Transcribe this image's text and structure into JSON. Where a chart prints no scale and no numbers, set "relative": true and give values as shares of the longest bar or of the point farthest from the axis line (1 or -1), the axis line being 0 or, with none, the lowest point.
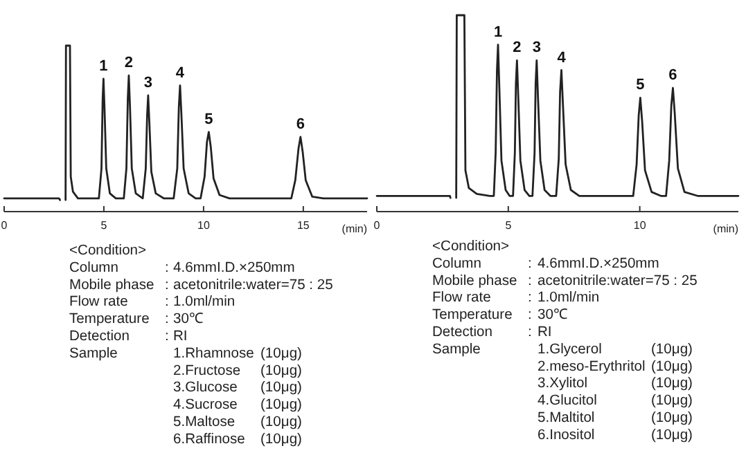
{
  "chart_data": [
    {
      "type": "line",
      "relative": true,
      "xlabel": "(min)",
      "xlim": [
        0,
        18.2
      ],
      "xticks": [
        0,
        5,
        10,
        15
      ],
      "marker": "none",
      "line_style": "solid",
      "series": [
        {
          "color": "#222222",
          "x": [
            0,
            2.75,
            2.8,
            2.95,
            3.08,
            3.1,
            3.3,
            3.34,
            3.45,
            3.7,
            4.6,
            4.75,
            4.88,
            4.94,
            4.98,
            5.03,
            5.12,
            5.3,
            5.6,
            6.0,
            6.13,
            6.2,
            6.25,
            6.31,
            6.4,
            6.6,
            6.95,
            7.1,
            7.17,
            7.22,
            7.28,
            7.38,
            7.6,
            8.0,
            8.5,
            8.68,
            8.76,
            8.82,
            8.89,
            9.0,
            9.25,
            9.6,
            9.85,
            10.05,
            10.17,
            10.26,
            10.36,
            10.5,
            10.8,
            11.3,
            14.4,
            14.6,
            14.76,
            14.86,
            14.97,
            15.12,
            15.45,
            16,
            18.2
          ],
          "values": [
            0.08,
            0.08,
            0.07,
            null,
            0.07,
            1,
            1,
            0.21,
            0.12,
            0.08,
            0.08,
            0.08,
            0.26,
            0.68,
            0.8,
            0.63,
            0.26,
            0.11,
            0.08,
            0.08,
            0.26,
            0.68,
            0.82,
            0.63,
            0.26,
            0.11,
            0.08,
            0.26,
            0.58,
            0.7,
            0.54,
            0.24,
            0.11,
            0.08,
            0.08,
            0.26,
            0.63,
            0.76,
            0.58,
            0.26,
            0.11,
            0.08,
            0.08,
            0.21,
            0.42,
            0.48,
            0.39,
            0.2,
            0.1,
            0.08,
            0.08,
            0.19,
            0.38,
            0.45,
            0.36,
            0.19,
            0.09,
            0.08,
            0.08
          ]
        }
      ],
      "annotations": [
        {
          "text": "1",
          "x": 4.98,
          "y": 0.8
        },
        {
          "text": "2",
          "x": 6.25,
          "y": 0.82
        },
        {
          "text": "3",
          "x": 7.22,
          "y": 0.7
        },
        {
          "text": "4",
          "x": 8.82,
          "y": 0.76
        },
        {
          "text": "5",
          "x": 10.26,
          "y": 0.48
        },
        {
          "text": "6",
          "x": 14.86,
          "y": 0.45
        },
        "<Condition>",
        "Column\t:\t4.6mmI.D.×250mm",
        "Mobile phase\t:\tacetonitrile:water=75 : 25",
        "Flow rate\t:\t1.0ml/min",
        "Temperature\t:\t30℃",
        "Detection\t:\tRI",
        "Sample\t\t1.Rhamnose\t(10μg)",
        "\t\t2.Fructose\t(10μg)",
        "\t\t3.Glucose\t(10μg)",
        "\t\t4.Sucrose\t(10μg)",
        "\t\t5.Maltose\t(10μg)",
        "\t\t6.Raffinose\t(10μg)"
      ]
    },
    {
      "type": "line",
      "relative": true,
      "xlabel": "(min)",
      "xlim": [
        0,
        13.75
      ],
      "xticks": [
        0,
        5,
        10
      ],
      "marker": "none",
      "line_style": "solid",
      "series": [
        {
          "color": "#222222",
          "x": [
            0,
            2.78,
            2.8,
            2.95,
            3.02,
            3.04,
            3.33,
            3.37,
            3.5,
            3.8,
            4.3,
            4.45,
            4.52,
            4.57,
            4.61,
            4.66,
            4.74,
            4.9,
            5.05,
            5.18,
            5.25,
            5.29,
            5.33,
            5.38,
            5.46,
            5.62,
            5.8,
            5.92,
            6.0,
            6.04,
            6.08,
            6.13,
            6.22,
            6.38,
            6.6,
            6.82,
            6.92,
            6.97,
            7.02,
            7.08,
            7.18,
            7.38,
            7.7,
            9.75,
            9.88,
            9.96,
            10.02,
            10.09,
            10.2,
            10.45,
            10.8,
            11.0,
            11.12,
            11.2,
            11.26,
            11.33,
            11.45,
            11.7,
            12.2,
            13.75
          ],
          "values": [
            0.08,
            0.08,
            0.07,
            null,
            0.07,
            1,
            1,
            0.21,
            0.12,
            0.09,
            0.08,
            0.08,
            0.3,
            0.72,
            0.85,
            0.63,
            0.26,
            0.11,
            0.08,
            0.08,
            0.3,
            0.65,
            0.77,
            0.58,
            0.26,
            0.11,
            0.08,
            0.08,
            0.3,
            0.65,
            0.77,
            0.58,
            0.26,
            0.11,
            0.08,
            0.08,
            0.27,
            0.61,
            0.72,
            0.54,
            0.24,
            0.11,
            0.08,
            0.08,
            0.24,
            0.49,
            0.58,
            0.46,
            0.21,
            0.1,
            0.08,
            0.08,
            0.26,
            0.54,
            0.63,
            0.5,
            0.22,
            0.1,
            0.08,
            0.08
          ]
        }
      ],
      "annotations": [
        {
          "text": "1",
          "x": 4.61,
          "y": 0.85
        },
        {
          "text": "2",
          "x": 5.33,
          "y": 0.77
        },
        {
          "text": "3",
          "x": 6.08,
          "y": 0.77
        },
        {
          "text": "4",
          "x": 7.02,
          "y": 0.72
        },
        {
          "text": "5",
          "x": 10.02,
          "y": 0.58
        },
        {
          "text": "6",
          "x": 11.26,
          "y": 0.63
        },
        "<Condition>",
        "Column\t:\t4.6mmI.D.×250mm",
        "Mobile phase\t:\tacetonitrile:water=75 : 25",
        "Flow rate\t:\t1.0ml/min",
        "Temperature\t:\t30℃",
        "Detection\t:\tRI",
        "Sample\t\t1.Glycerol\t(10μg)",
        "\t\t2.meso-Erythritol\t(10μg)",
        "\t\t3.Xylitol\t(10μg)",
        "\t\t4.Glucitol\t(10μg)",
        "\t\t5.Maltitol\t(10μg)",
        "\t\t6.Inositol\t(10μg)"
      ]
    }
  ]
}
